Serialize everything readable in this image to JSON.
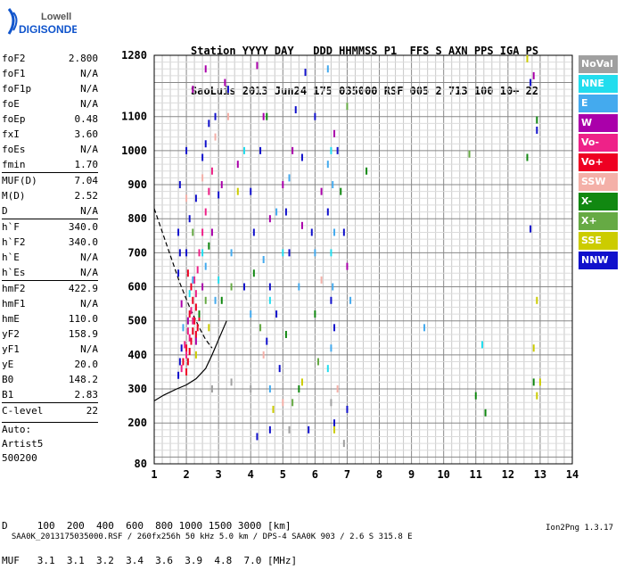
{
  "logo": {
    "line1": "Lowell",
    "line2": "DIGISONDE"
  },
  "header": {
    "line1": "Station YYYY DAY   DDD HHMMSS P1  FFS S AXN PPS IGA PS",
    "line2": "SaoLuis 2013 Jun24 175 035000 RSF 005 2 713 100 10+ 22"
  },
  "params": [
    {
      "name": "foF2",
      "value": "2.800"
    },
    {
      "name": "foF1",
      "value": "N/A"
    },
    {
      "name": "foF1p",
      "value": "N/A"
    },
    {
      "name": "foE",
      "value": "N/A"
    },
    {
      "name": "foEp",
      "value": "0.48"
    },
    {
      "name": "fxI",
      "value": "3.60"
    },
    {
      "name": "foEs",
      "value": "N/A"
    },
    {
      "name": "fmin",
      "value": "1.70"
    },
    {
      "name": "MUF(D)",
      "value": "7.04",
      "sep": true
    },
    {
      "name": "M(D)",
      "value": "2.52"
    },
    {
      "name": "D",
      "value": "N/A"
    },
    {
      "name": "h`F",
      "value": "340.0",
      "sep": true
    },
    {
      "name": "h`F2",
      "value": "340.0"
    },
    {
      "name": "h`E",
      "value": "N/A"
    },
    {
      "name": "h`Es",
      "value": "N/A"
    },
    {
      "name": "hmF2",
      "value": "422.9",
      "sep": true
    },
    {
      "name": "hmF1",
      "value": "N/A"
    },
    {
      "name": "hmE",
      "value": "110.0"
    },
    {
      "name": "yF2",
      "value": "158.9"
    },
    {
      "name": "yF1",
      "value": "N/A"
    },
    {
      "name": "yE",
      "value": "20.0"
    },
    {
      "name": "B0",
      "value": "148.2"
    },
    {
      "name": "B1",
      "value": "2.83"
    },
    {
      "name": "C-level",
      "value": "22",
      "sep": true
    }
  ],
  "autoscaling": [
    "Auto:",
    "Artist5",
    "500200"
  ],
  "legend": [
    {
      "label": "NoVal",
      "color": "#a0a0a0"
    },
    {
      "label": "NNE",
      "color": "#22ddee"
    },
    {
      "label": "E",
      "color": "#44aaee"
    },
    {
      "label": "W",
      "color": "#aa00aa"
    },
    {
      "label": "Vo-",
      "color": "#ee2288"
    },
    {
      "label": "Vo+",
      "color": "#ee0022"
    },
    {
      "label": "SSW",
      "color": "#f4b0a8"
    },
    {
      "label": "X-",
      "color": "#118811"
    },
    {
      "label": "X+",
      "color": "#66aa44"
    },
    {
      "label": "SSE",
      "color": "#cccc00"
    },
    {
      "label": "NNW",
      "color": "#1111cc"
    }
  ],
  "muf_table": {
    "line1": "D     100  200  400  600  800 1000 1500 3000 [km]",
    "line2": "MUF   3.1  3.1  3.2  3.4  3.6  3.9  4.8  7.0 [MHz]"
  },
  "footer": {
    "left": "SAA0K_2013175035000.RSF / 260fx256h 50 kHz 5.0 km / DPS-4 SAA0K 903 / 2.6 S 315.8 E",
    "right": "Ion2Png 1.3.17"
  },
  "chart_data": {
    "type": "scatter",
    "title": "",
    "xlabel": "",
    "ylabel": "",
    "xlim": [
      1,
      14
    ],
    "ylim": [
      80,
      1280
    ],
    "x_ticks": [
      1,
      2,
      3,
      4,
      5,
      6,
      7,
      8,
      9,
      10,
      11,
      12,
      13,
      14
    ],
    "y_ticks": [
      80,
      200,
      300,
      400,
      500,
      600,
      700,
      800,
      900,
      1000,
      1100,
      1280
    ],
    "grid": true,
    "profile_curve": [
      [
        1.0,
        265
      ],
      [
        1.3,
        282
      ],
      [
        1.7,
        300
      ],
      [
        2.0,
        312
      ],
      [
        2.3,
        330
      ],
      [
        2.6,
        360
      ],
      [
        2.8,
        400
      ],
      [
        3.0,
        445
      ],
      [
        3.25,
        500
      ]
    ],
    "dashed_curve": [
      [
        1.0,
        830
      ],
      [
        1.4,
        720
      ],
      [
        1.8,
        610
      ],
      [
        2.1,
        540
      ],
      [
        2.4,
        480
      ],
      [
        2.6,
        445
      ],
      [
        2.8,
        420
      ]
    ],
    "series": [
      {
        "color": "#ee0022",
        "points": [
          [
            2.0,
            350
          ],
          [
            2.05,
            380
          ],
          [
            2.1,
            410
          ],
          [
            2.15,
            440
          ],
          [
            2.2,
            470
          ],
          [
            2.25,
            500
          ],
          [
            2.1,
            520
          ],
          [
            2.2,
            560
          ],
          [
            2.3,
            540
          ],
          [
            2.0,
            420
          ],
          [
            1.9,
            380
          ],
          [
            2.3,
            460
          ],
          [
            2.35,
            480
          ],
          [
            2.4,
            510
          ],
          [
            2.15,
            600
          ],
          [
            2.05,
            640
          ]
        ]
      },
      {
        "color": "#ee2288",
        "points": [
          [
            1.85,
            360
          ],
          [
            2.0,
            400
          ],
          [
            2.1,
            450
          ],
          [
            2.2,
            500
          ],
          [
            2.3,
            580
          ],
          [
            2.25,
            620
          ],
          [
            2.4,
            700
          ],
          [
            2.5,
            760
          ],
          [
            2.6,
            820
          ],
          [
            2.7,
            880
          ],
          [
            2.8,
            940
          ],
          [
            2.05,
            470
          ],
          [
            1.95,
            430
          ],
          [
            2.15,
            530
          ],
          [
            2.35,
            650
          ]
        ]
      },
      {
        "color": "#1111cc",
        "points": [
          [
            1.75,
            340
          ],
          [
            1.8,
            380
          ],
          [
            1.85,
            420
          ],
          [
            1.75,
            640
          ],
          [
            1.8,
            700
          ],
          [
            1.75,
            760
          ],
          [
            2.0,
            700
          ],
          [
            2.1,
            800
          ],
          [
            2.3,
            860
          ],
          [
            2.5,
            980
          ],
          [
            2.6,
            1020
          ],
          [
            2.7,
            1080
          ],
          [
            2.9,
            1100
          ],
          [
            3.0,
            870
          ],
          [
            3.3,
            1180
          ],
          [
            4.0,
            880
          ],
          [
            4.1,
            760
          ],
          [
            4.3,
            1000
          ],
          [
            4.5,
            440
          ],
          [
            4.6,
            600
          ],
          [
            4.8,
            520
          ],
          [
            4.9,
            360
          ],
          [
            5.1,
            820
          ],
          [
            5.2,
            700
          ],
          [
            5.4,
            1120
          ],
          [
            5.6,
            980
          ],
          [
            5.7,
            1230
          ],
          [
            5.9,
            760
          ],
          [
            6.0,
            1100
          ],
          [
            6.4,
            820
          ],
          [
            6.5,
            560
          ],
          [
            6.6,
            480
          ],
          [
            6.7,
            1000
          ],
          [
            6.9,
            760
          ],
          [
            4.2,
            160
          ],
          [
            4.6,
            180
          ],
          [
            5.8,
            180
          ],
          [
            6.6,
            200
          ],
          [
            7.0,
            240
          ],
          [
            1.8,
            900
          ],
          [
            2.0,
            1000
          ],
          [
            3.8,
            600
          ],
          [
            12.7,
            1200
          ],
          [
            12.9,
            1060
          ],
          [
            12.7,
            770
          ]
        ]
      },
      {
        "color": "#aa00aa",
        "points": [
          [
            1.85,
            550
          ],
          [
            2.05,
            500
          ],
          [
            2.3,
            440
          ],
          [
            2.5,
            600
          ],
          [
            2.8,
            760
          ],
          [
            3.1,
            900
          ],
          [
            3.2,
            1200
          ],
          [
            3.6,
            960
          ],
          [
            4.2,
            1250
          ],
          [
            4.4,
            1100
          ],
          [
            4.6,
            800
          ],
          [
            5.0,
            900
          ],
          [
            5.3,
            1000
          ],
          [
            5.6,
            780
          ],
          [
            6.2,
            880
          ],
          [
            6.6,
            1050
          ],
          [
            7.0,
            660
          ],
          [
            2.2,
            1180
          ],
          [
            2.6,
            1240
          ],
          [
            12.8,
            1220
          ]
        ]
      },
      {
        "color": "#44aaee",
        "points": [
          [
            1.9,
            480
          ],
          [
            2.2,
            620
          ],
          [
            2.6,
            660
          ],
          [
            2.9,
            560
          ],
          [
            3.4,
            700
          ],
          [
            4.0,
            520
          ],
          [
            4.4,
            680
          ],
          [
            4.8,
            820
          ],
          [
            5.2,
            920
          ],
          [
            5.5,
            600
          ],
          [
            6.0,
            700
          ],
          [
            6.4,
            1240
          ],
          [
            6.5,
            420
          ],
          [
            6.55,
            600
          ],
          [
            6.6,
            760
          ],
          [
            6.55,
            900
          ],
          [
            7.1,
            560
          ],
          [
            9.4,
            480
          ],
          [
            6.4,
            960
          ],
          [
            4.6,
            300
          ]
        ]
      },
      {
        "color": "#22ddee",
        "points": [
          [
            2.1,
            580
          ],
          [
            2.5,
            700
          ],
          [
            3.0,
            620
          ],
          [
            3.8,
            1000
          ],
          [
            4.6,
            560
          ],
          [
            5.0,
            700
          ],
          [
            6.5,
            1000
          ],
          [
            6.5,
            700
          ],
          [
            6.4,
            360
          ],
          [
            11.2,
            430
          ]
        ]
      },
      {
        "color": "#118811",
        "points": [
          [
            2.4,
            520
          ],
          [
            2.7,
            720
          ],
          [
            3.1,
            560
          ],
          [
            4.1,
            640
          ],
          [
            4.5,
            1100
          ],
          [
            5.1,
            460
          ],
          [
            5.5,
            300
          ],
          [
            6.0,
            520
          ],
          [
            6.8,
            880
          ],
          [
            7.6,
            940
          ],
          [
            11.0,
            280
          ],
          [
            11.3,
            230
          ],
          [
            12.6,
            980
          ],
          [
            12.8,
            320
          ],
          [
            12.9,
            1090
          ]
        ]
      },
      {
        "color": "#66aa44",
        "points": [
          [
            2.2,
            760
          ],
          [
            2.6,
            560
          ],
          [
            3.4,
            600
          ],
          [
            4.3,
            480
          ],
          [
            5.3,
            260
          ],
          [
            6.1,
            380
          ],
          [
            7.0,
            1130
          ],
          [
            10.8,
            990
          ]
        ]
      },
      {
        "color": "#cccc00",
        "points": [
          [
            2.3,
            400
          ],
          [
            2.7,
            480
          ],
          [
            3.6,
            880
          ],
          [
            4.7,
            240
          ],
          [
            5.6,
            320
          ],
          [
            6.6,
            180
          ],
          [
            12.9,
            280
          ],
          [
            12.8,
            420
          ],
          [
            12.9,
            560
          ],
          [
            12.6,
            1270
          ],
          [
            13.0,
            320
          ]
        ]
      },
      {
        "color": "#f4b0a8",
        "points": [
          [
            2.0,
            860
          ],
          [
            2.5,
            920
          ],
          [
            2.9,
            1040
          ],
          [
            3.3,
            1100
          ],
          [
            4.4,
            400
          ],
          [
            5.0,
            260
          ],
          [
            6.2,
            620
          ],
          [
            6.7,
            300
          ]
        ]
      },
      {
        "color": "#a0a0a0",
        "points": [
          [
            2.8,
            300
          ],
          [
            3.4,
            320
          ],
          [
            4.0,
            300
          ],
          [
            5.2,
            180
          ],
          [
            6.5,
            260
          ],
          [
            6.9,
            140
          ]
        ]
      }
    ]
  }
}
